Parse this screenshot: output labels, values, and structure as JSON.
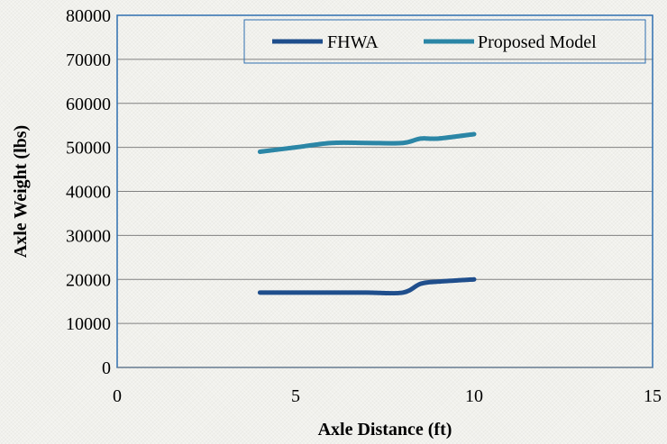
{
  "chart_data": {
    "type": "line",
    "xlabel": "Axle Distance (ft)",
    "ylabel": "Axle Weight (lbs)",
    "xlim": [
      0,
      15
    ],
    "ylim": [
      0,
      80000
    ],
    "x_ticks": [
      "0",
      "5",
      "10",
      "15"
    ],
    "y_ticks": [
      "0",
      "10000",
      "20000",
      "30000",
      "40000",
      "50000",
      "60000",
      "70000",
      "80000"
    ],
    "grid": "horizontal",
    "legend_position": "top-right",
    "series": [
      {
        "name": "FHWA",
        "color": "#1f4e8c",
        "x": [
          4,
          5,
          6,
          7,
          8,
          8.5,
          9,
          10
        ],
        "y": [
          17000,
          17000,
          17000,
          17000,
          17000,
          19000,
          19500,
          20000
        ]
      },
      {
        "name": "Proposed Model",
        "color": "#2b86a6",
        "x": [
          4,
          5,
          6,
          7,
          8,
          8.5,
          9,
          10
        ],
        "y": [
          49000,
          50000,
          51000,
          51000,
          51000,
          52000,
          52000,
          53000
        ]
      }
    ]
  }
}
